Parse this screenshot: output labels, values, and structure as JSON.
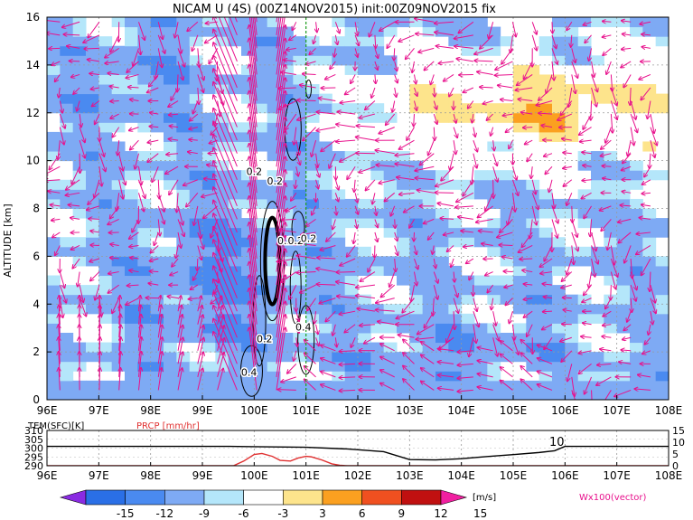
{
  "title": "NICAM U (4S) (00Z14NOV2015) init:00Z09NOV2015 fix",
  "chart_data": [
    {
      "type": "heatmap",
      "title": "NICAM U (4S) (00Z14NOV2015) init:00Z09NOV2015 fix",
      "xlabel": "",
      "ylabel": "ALTITUDE [km]",
      "x_ticks": [
        "96E",
        "97E",
        "98E",
        "99E",
        "100E",
        "101E",
        "102E",
        "103E",
        "104E",
        "105E",
        "106E",
        "107E",
        "108E"
      ],
      "x_range": [
        96,
        108
      ],
      "y_ticks": [
        "0",
        "2",
        "4",
        "6",
        "8",
        "10",
        "12",
        "14",
        "16"
      ],
      "y_range": [
        0,
        16
      ],
      "grid": true,
      "reference_line_lon": 101,
      "contour_labels": [
        {
          "text": "0.2",
          "lon": 100.0,
          "alt": 9.4
        },
        {
          "text": "0.2",
          "lon": 100.4,
          "alt": 9.0
        },
        {
          "text": "0.2",
          "lon": 100.6,
          "alt": 6.5
        },
        {
          "text": "0.2",
          "lon": 100.8,
          "alt": 6.5
        },
        {
          "text": "0.2",
          "lon": 101.05,
          "alt": 6.6
        },
        {
          "text": "0.2",
          "lon": 100.2,
          "alt": 2.4
        },
        {
          "text": "0.4",
          "lon": 99.9,
          "alt": 1.0
        },
        {
          "text": "0.4",
          "lon": 100.95,
          "alt": 2.9
        }
      ],
      "colorbar": {
        "levels": [
          "-15",
          "-12",
          "-9",
          "-6",
          "-3",
          "3",
          "6",
          "9",
          "12",
          "15"
        ],
        "unit": "[m/s]",
        "colors": [
          "#8a2be2",
          "#2a6fe6",
          "#4a8af0",
          "#7eaaf4",
          "#b4e6fa",
          "#ffffff",
          "#fde48c",
          "#fba020",
          "#f05020",
          "#c01010",
          "#f020a0"
        ]
      },
      "vector_label": "Wx100(vector)"
    },
    {
      "type": "line",
      "xlabel": "",
      "x_range": [
        96,
        108
      ],
      "left_axis_label": "TEM(SFC)[K]",
      "left_ticks": [
        "290",
        "295",
        "300",
        "305",
        "310"
      ],
      "right_axis_label": "PRCP [mm/hr]",
      "right_ticks": [
        "0",
        "5",
        "10",
        "15"
      ],
      "series": [
        {
          "name": "TEM(SFC)[K]",
          "color": "#000000",
          "x": [
            96,
            99.5,
            100.0,
            101.0,
            101.8,
            102.5,
            103.0,
            103.5,
            104.0,
            104.5,
            105.0,
            105.5,
            105.8,
            106.0,
            108.0
          ],
          "y": [
            301,
            301,
            300.8,
            300.5,
            299.5,
            298,
            293.5,
            293.3,
            294.0,
            295.2,
            296.3,
            297.5,
            298.5,
            301,
            301
          ]
        },
        {
          "name": "PRCP [mm/hr]",
          "color": "#e03030",
          "x": [
            96,
            99.6,
            99.8,
            100.0,
            100.15,
            100.35,
            100.5,
            100.7,
            100.85,
            101.0,
            101.1,
            101.3,
            101.5,
            101.65,
            101.8,
            102.0,
            108.0
          ],
          "y": [
            0,
            0,
            2,
            4.8,
            5.2,
            4.0,
            2.3,
            2.0,
            3.3,
            4.0,
            3.8,
            2.5,
            0.8,
            0.2,
            0,
            0,
            0
          ]
        }
      ],
      "annotation": "10"
    }
  ]
}
